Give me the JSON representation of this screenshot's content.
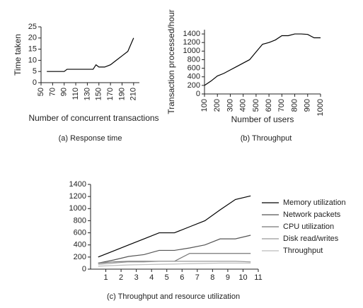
{
  "chart_data": [
    {
      "type": "line",
      "caption": "(a) Response time",
      "xlabel": "Number of concurrent transactions",
      "ylabel": "Time taken",
      "x": [
        60,
        70,
        80,
        90,
        95,
        100,
        110,
        120,
        130,
        140,
        145,
        150,
        160,
        165,
        170,
        180,
        190,
        200,
        210
      ],
      "values": [
        5,
        5,
        5,
        5,
        6,
        6,
        6,
        6,
        6,
        6,
        8,
        7,
        7,
        7.5,
        8,
        10,
        12,
        14,
        20
      ],
      "color": "#000000",
      "xlim": [
        50,
        220
      ],
      "xticks": [
        50,
        70,
        90,
        110,
        130,
        150,
        170,
        190,
        210
      ],
      "ylim": [
        0,
        25
      ],
      "yticks": [
        0,
        5,
        10,
        15,
        20,
        25
      ]
    },
    {
      "type": "line",
      "caption": "(b) Throughput",
      "xlabel": "Number of users",
      "ylabel": "Transaction processed/hour",
      "x": [
        100,
        150,
        200,
        250,
        300,
        350,
        400,
        450,
        500,
        550,
        600,
        650,
        700,
        750,
        800,
        850,
        900,
        950,
        1000
      ],
      "values": [
        200,
        300,
        420,
        480,
        560,
        640,
        720,
        800,
        980,
        1160,
        1200,
        1260,
        1360,
        1360,
        1400,
        1400,
        1390,
        1310,
        1310
      ],
      "color": "#000000",
      "xlim": [
        100,
        1000
      ],
      "xticks": [
        100,
        200,
        300,
        400,
        500,
        600,
        700,
        800,
        900,
        1000
      ],
      "ylim": [
        0,
        1500
      ],
      "yticks": [
        0,
        200,
        400,
        600,
        800,
        1000,
        1200,
        1400
      ]
    },
    {
      "type": "line",
      "caption": "(c) Throughput and resource utilization",
      "x": [
        0.5,
        1.5,
        2.5,
        3.5,
        4.5,
        5.5,
        6.5,
        7.5,
        8.5,
        9.5,
        10.5
      ],
      "series": [
        {
          "name": "Memory utilization",
          "color": "#000000",
          "values": [
            200,
            300,
            400,
            500,
            600,
            600,
            700,
            800,
            980,
            1150,
            1210
          ]
        },
        {
          "name": "Network packets",
          "color": "#555555",
          "values": [
            100,
            150,
            210,
            240,
            310,
            310,
            350,
            400,
            500,
            500,
            560
          ]
        },
        {
          "name": "CPU utilization",
          "color": "#777777",
          "values": [
            100,
            120,
            130,
            130,
            130,
            130,
            260,
            260,
            260,
            260,
            260
          ]
        },
        {
          "name": "Disk read/writes",
          "color": "#999999",
          "values": [
            80,
            100,
            120,
            120,
            130,
            130,
            130,
            130,
            130,
            130,
            120
          ]
        },
        {
          "name": "Throughput",
          "color": "#bbbbbb",
          "values": [
            50,
            60,
            70,
            75,
            80,
            85,
            90,
            95,
            100,
            100,
            100
          ]
        }
      ],
      "xlim": [
        0,
        11
      ],
      "xticks": [
        1,
        2,
        3,
        4,
        5,
        6,
        7,
        8,
        9,
        10,
        11
      ],
      "ylim": [
        0,
        1400
      ],
      "yticks": [
        0,
        200,
        400,
        600,
        800,
        1000,
        1200,
        1400
      ]
    }
  ]
}
